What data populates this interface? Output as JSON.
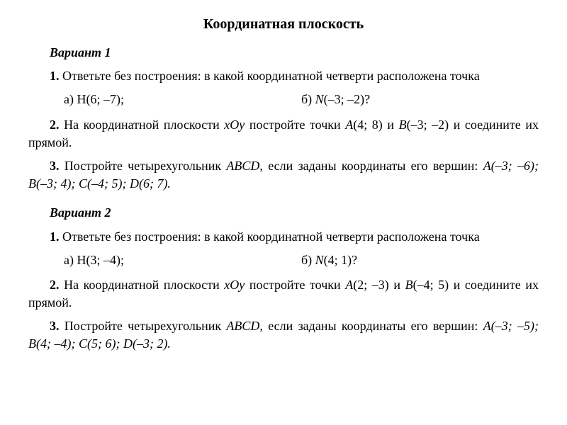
{
  "title": "Координатная плоскость",
  "variant1": {
    "header": "Вариант 1",
    "task1": {
      "num": "1.",
      "text": " Ответьте без построения: в какой координатной четверти расположена точка",
      "point_a": "а) H(6; –7);",
      "point_b": "б) N(–3; –2)?"
    },
    "task2": {
      "num": "2.",
      "text_before": " На координатной плоскости ",
      "xoy": "xOy",
      "text_mid": " постройте точки ",
      "A": "A",
      "A_coords": "(4; 8) и ",
      "B": "B",
      "B_coords": "(–3; –2) и соедините их прямой."
    },
    "task3": {
      "num": "3.",
      "text_before": " Постройте четырехугольник ",
      "ABCD": "ABCD",
      "text_mid": ", если заданы координаты его вершин: ",
      "coords": "A(–3; –6); B(–3; 4); C(–4; 5); D(6; 7)."
    }
  },
  "variant2": {
    "header": "Вариант 2",
    "task1": {
      "num": "1.",
      "text": " Ответьте без построения: в какой координатной четверти расположена точка",
      "point_a": "а) H(3; –4);",
      "point_b": "б) N(4; 1)?"
    },
    "task2": {
      "num": "2.",
      "text_before": " На координатной плоскости ",
      "xoy": "xOy",
      "text_mid": " постройте точки ",
      "A": "A",
      "A_coords": "(2; –3) и ",
      "B": "B",
      "B_coords": "(–4; 5) и соедините их прямой."
    },
    "task3": {
      "num": "3.",
      "text_before": " Постройте четырехугольник ",
      "ABCD": "ABCD",
      "text_mid": ", если заданы координаты его вершин: ",
      "coords": "A(–3; –5); B(4; –4); C(5; 6); D(–3; 2)."
    }
  }
}
